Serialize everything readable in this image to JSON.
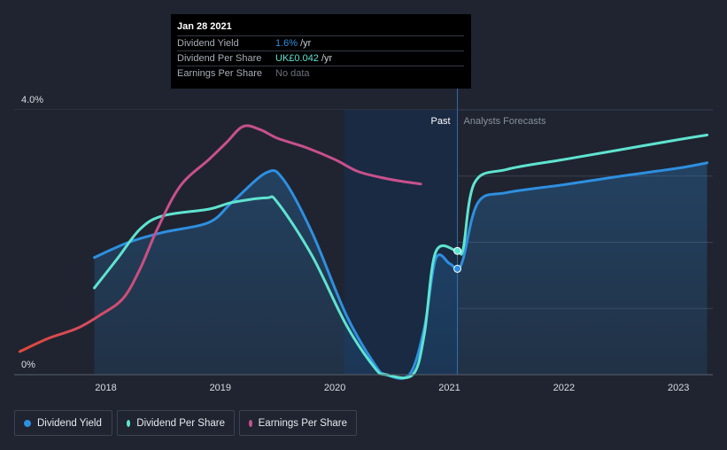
{
  "tooltip": {
    "date": "Jan 28 2021",
    "rows": [
      {
        "label": "Dividend Yield",
        "value": "1.6%",
        "unit": "/yr",
        "color": "#2e8fe0"
      },
      {
        "label": "Dividend Per Share",
        "value": "UK£0.042",
        "unit": "/yr",
        "color": "#5fe3d0"
      },
      {
        "label": "Earnings Per Share",
        "value": "No data",
        "unit": "",
        "color": "#6b717c"
      }
    ]
  },
  "legend": [
    {
      "label": "Dividend Yield",
      "color": "#2e8fe0"
    },
    {
      "label": "Dividend Per Share",
      "color": "#5fe3d0"
    },
    {
      "label": "Earnings Per Share",
      "color": "#c8508c"
    }
  ],
  "chart_data": {
    "type": "line",
    "region_labels": {
      "past": "Past",
      "forecast": "Analysts Forecasts"
    },
    "y_ticks": [
      {
        "value": 4.0,
        "label": "4.0%"
      },
      {
        "value": 0,
        "label": "0%"
      }
    ],
    "ylim": [
      0,
      4.0
    ],
    "xlim": [
      2017.2,
      2023.3
    ],
    "x_ticks": [
      {
        "value": 2018,
        "label": "2018"
      },
      {
        "value": 2019,
        "label": "2019"
      },
      {
        "value": 2020,
        "label": "2020"
      },
      {
        "value": 2021,
        "label": "2021"
      },
      {
        "value": 2022,
        "label": "2022"
      },
      {
        "value": 2023,
        "label": "2023"
      }
    ],
    "past_end": 2021.07,
    "highlight_start": 2020.08,
    "series": [
      {
        "name": "Dividend Yield",
        "color": "#2e8fe0",
        "fill": true,
        "points": [
          [
            2017.9,
            1.77
          ],
          [
            2018.2,
            2.0
          ],
          [
            2018.5,
            2.15
          ],
          [
            2018.9,
            2.3
          ],
          [
            2019.1,
            2.6
          ],
          [
            2019.4,
            3.05
          ],
          [
            2019.55,
            2.95
          ],
          [
            2019.8,
            2.15
          ],
          [
            2020.1,
            0.9
          ],
          [
            2020.35,
            0.15
          ],
          [
            2020.45,
            0.0
          ],
          [
            2020.65,
            0.0
          ],
          [
            2020.78,
            0.7
          ],
          [
            2020.88,
            1.75
          ],
          [
            2021.0,
            1.68
          ],
          [
            2021.07,
            1.6
          ],
          [
            2021.12,
            1.75
          ],
          [
            2021.25,
            2.6
          ],
          [
            2021.5,
            2.75
          ],
          [
            2022.0,
            2.87
          ],
          [
            2022.5,
            3.0
          ],
          [
            2023.0,
            3.12
          ],
          [
            2023.25,
            3.2
          ]
        ]
      },
      {
        "name": "Dividend Per Share",
        "color": "#5fe3d0",
        "fill": false,
        "points": [
          [
            2017.9,
            1.31
          ],
          [
            2018.1,
            1.75
          ],
          [
            2018.3,
            2.2
          ],
          [
            2018.5,
            2.4
          ],
          [
            2018.9,
            2.5
          ],
          [
            2019.1,
            2.6
          ],
          [
            2019.4,
            2.67
          ],
          [
            2019.5,
            2.6
          ],
          [
            2019.8,
            1.8
          ],
          [
            2020.1,
            0.75
          ],
          [
            2020.35,
            0.1
          ],
          [
            2020.45,
            0.0
          ],
          [
            2020.68,
            0.0
          ],
          [
            2020.78,
            0.6
          ],
          [
            2020.88,
            1.85
          ],
          [
            2021.07,
            1.87
          ],
          [
            2021.12,
            1.9
          ],
          [
            2021.22,
            2.9
          ],
          [
            2021.5,
            3.1
          ],
          [
            2022.0,
            3.25
          ],
          [
            2022.5,
            3.4
          ],
          [
            2023.0,
            3.55
          ],
          [
            2023.25,
            3.62
          ]
        ]
      },
      {
        "name": "Earnings Per Share",
        "color": "#c8508c",
        "start_color": "#e0483c",
        "points": [
          [
            2017.25,
            0.35
          ],
          [
            2017.5,
            0.55
          ],
          [
            2017.75,
            0.7
          ],
          [
            2017.95,
            0.9
          ],
          [
            2018.15,
            1.15
          ],
          [
            2018.3,
            1.6
          ],
          [
            2018.45,
            2.2
          ],
          [
            2018.65,
            2.85
          ],
          [
            2018.9,
            3.25
          ],
          [
            2019.05,
            3.5
          ],
          [
            2019.2,
            3.75
          ],
          [
            2019.35,
            3.7
          ],
          [
            2019.5,
            3.57
          ],
          [
            2019.75,
            3.43
          ],
          [
            2020.0,
            3.25
          ],
          [
            2020.2,
            3.07
          ],
          [
            2020.4,
            2.98
          ],
          [
            2020.55,
            2.93
          ],
          [
            2020.75,
            2.88
          ]
        ]
      }
    ]
  }
}
